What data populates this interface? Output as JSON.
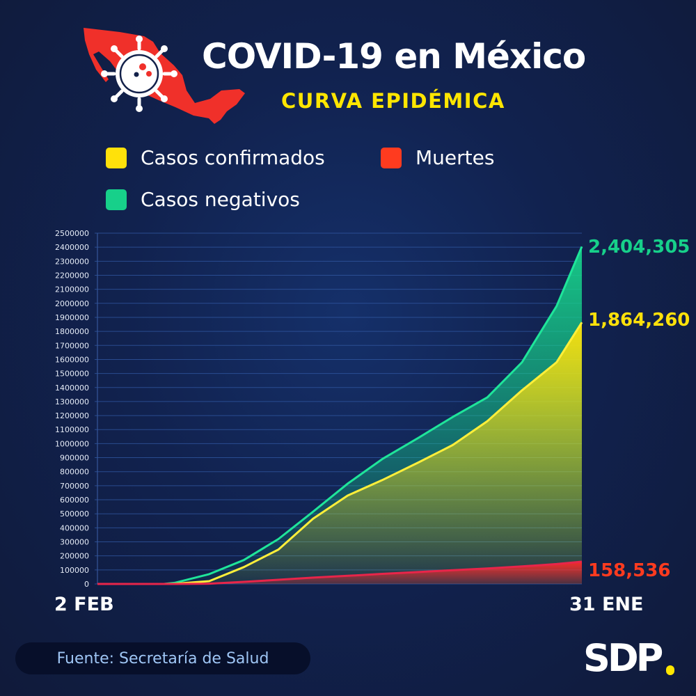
{
  "header": {
    "title": "COVID-19 en México",
    "subtitle": "CURVA EPIDÉMICA"
  },
  "legend": [
    {
      "label": "Casos confirmados",
      "color": "#ffe10a"
    },
    {
      "label": "Muertes",
      "color": "#ff3b1f"
    },
    {
      "label": "Casos negativos",
      "color": "#17d08a"
    }
  ],
  "chart_data": {
    "type": "area",
    "title": "Curva epidémica",
    "x_start_label": "2 FEB",
    "x_end_label": "31 ENE",
    "xlim": [
      0,
      364
    ],
    "ylim": [
      0,
      2500000
    ],
    "yticks": [
      0,
      100000,
      200000,
      300000,
      400000,
      500000,
      600000,
      700000,
      800000,
      900000,
      1000000,
      1100000,
      1200000,
      1300000,
      1400000,
      1500000,
      1600000,
      1700000,
      1800000,
      1900000,
      2000000,
      2100000,
      2200000,
      2300000,
      2400000,
      2500000
    ],
    "grid": true,
    "x": [
      0,
      50,
      58,
      84,
      110,
      136,
      162,
      188,
      214,
      241,
      267,
      293,
      319,
      345,
      364
    ],
    "series": [
      {
        "name": "Casos negativos",
        "color": "#17d08a",
        "final_label": "2,404,305",
        "values": [
          0,
          0,
          8000,
          70000,
          170000,
          320000,
          515000,
          715000,
          890000,
          1040000,
          1190000,
          1330000,
          1580000,
          1980000,
          2404305
        ]
      },
      {
        "name": "Casos confirmados",
        "color": "#ffe10a",
        "final_label": "1,864,260",
        "values": [
          0,
          0,
          1000,
          20000,
          120000,
          245000,
          465000,
          630000,
          740000,
          865000,
          990000,
          1160000,
          1380000,
          1580000,
          1864260
        ]
      },
      {
        "name": "Muertes",
        "color": "#ff3b1f",
        "final_label": "158,536",
        "values": [
          0,
          0,
          0,
          2000,
          15000,
          30000,
          45000,
          58000,
          72000,
          85000,
          98000,
          110000,
          125000,
          142000,
          158536
        ]
      }
    ]
  },
  "footer": {
    "source": "Fuente: Secretaría de Salud",
    "brand": "SDP"
  }
}
